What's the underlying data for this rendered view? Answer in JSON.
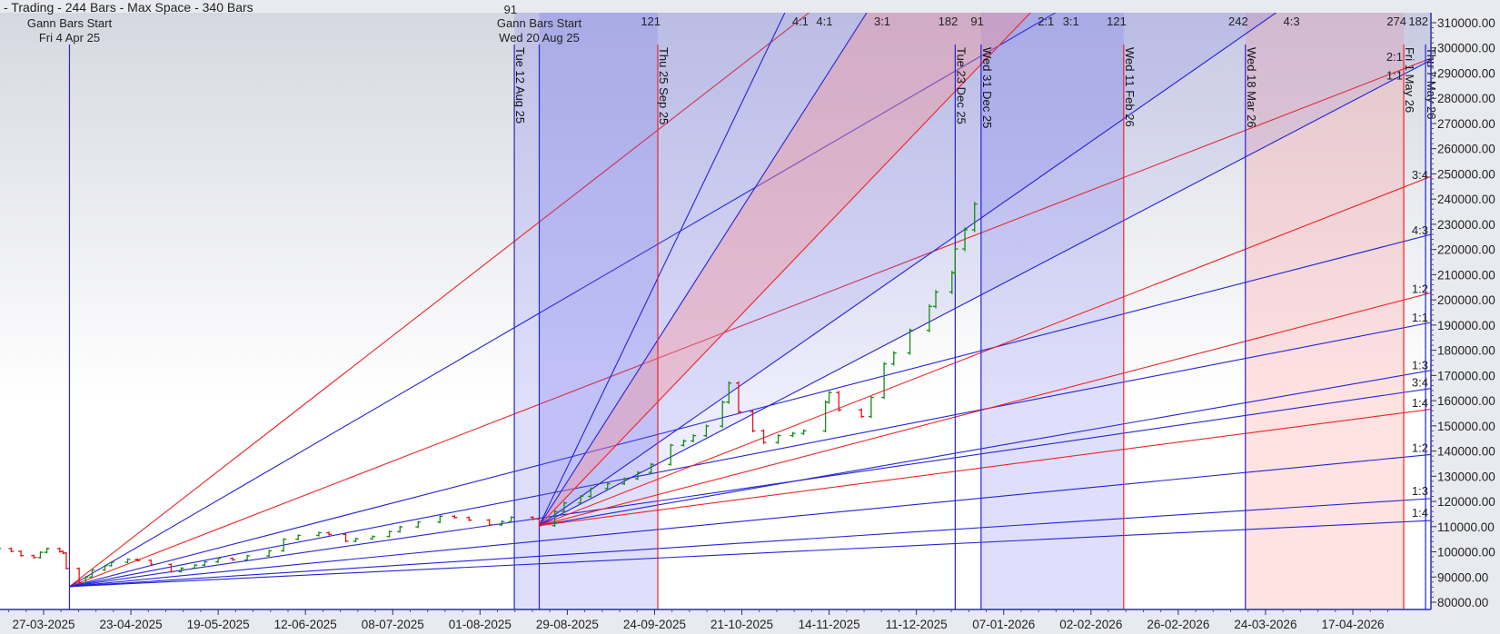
{
  "header": {
    "text": "- Trading - 244 Bars - Max Space - 340 Bars"
  },
  "colors": {
    "blue_line": "#2323d6",
    "red_line": "#ee2424",
    "up_bar": "#168a16",
    "down_bar": "#e01414",
    "axis": "#2a2ad0",
    "blue_zone": "#6c6cf0",
    "pink_zone": "#ff8c8c"
  },
  "chart_data": {
    "type": "ohlc",
    "y_axis": {
      "min": 80000,
      "max": 310000,
      "step": 10000,
      "decimals": 2,
      "position": "right"
    },
    "x_ticks": [
      "27-03-2025",
      "23-04-2025",
      "19-05-2025",
      "12-06-2025",
      "08-07-2025",
      "01-08-2025",
      "29-08-2025",
      "24-09-2025",
      "21-10-2025",
      "14-11-2025",
      "11-12-2025",
      "07-01-2026",
      "02-02-2026",
      "26-02-2026",
      "24-03-2026",
      "17-04-2026"
    ],
    "bars": [
      [
        "2025-03-13",
        101300
      ],
      [
        "2025-03-17",
        100200
      ],
      [
        "2025-03-20",
        98500
      ],
      [
        "2025-03-24",
        97700
      ],
      [
        "2025-03-26",
        99800
      ],
      [
        "2025-03-28",
        101300
      ],
      [
        "2025-04-01",
        100100
      ],
      [
        "2025-04-02",
        99500
      ],
      [
        "2025-04-03",
        93400
      ],
      [
        "2025-04-07",
        87600
      ],
      [
        "2025-04-09",
        90000
      ],
      [
        "2025-04-11",
        92800
      ],
      [
        "2025-04-15",
        94500
      ],
      [
        "2025-04-17",
        95900
      ],
      [
        "2025-04-22",
        97000
      ],
      [
        "2025-04-25",
        96600
      ],
      [
        "2025-04-29",
        95000
      ],
      [
        "2025-05-05",
        92100
      ],
      [
        "2025-05-08",
        93500
      ],
      [
        "2025-05-12",
        94700
      ],
      [
        "2025-05-15",
        96000
      ],
      [
        "2025-05-19",
        97400
      ],
      [
        "2025-05-23",
        96800
      ],
      [
        "2025-05-27",
        98400
      ],
      [
        "2025-06-02",
        100400
      ],
      [
        "2025-06-06",
        105000
      ],
      [
        "2025-06-10",
        106500
      ],
      [
        "2025-06-16",
        107600
      ],
      [
        "2025-06-19",
        106900
      ],
      [
        "2025-06-24",
        104200
      ],
      [
        "2025-06-27",
        105200
      ],
      [
        "2025-07-02",
        106100
      ],
      [
        "2025-07-07",
        108000
      ],
      [
        "2025-07-10",
        109900
      ],
      [
        "2025-07-15",
        111800
      ],
      [
        "2025-07-21",
        114100
      ],
      [
        "2025-07-25",
        113600
      ],
      [
        "2025-07-29",
        112600
      ],
      [
        "2025-08-04",
        110700
      ],
      [
        "2025-08-08",
        112000
      ],
      [
        "2025-08-11",
        113700
      ],
      [
        "2025-08-18",
        113000
      ],
      [
        "2025-08-20",
        110400
      ],
      [
        "2025-08-25",
        116000
      ],
      [
        "2025-08-28",
        119400
      ],
      [
        "2025-09-02",
        122000
      ],
      [
        "2025-09-05",
        125100
      ],
      [
        "2025-09-10",
        127000
      ],
      [
        "2025-09-15",
        129000
      ],
      [
        "2025-09-19",
        131500
      ],
      [
        "2025-09-23",
        134700
      ],
      [
        "2025-09-29",
        142300
      ],
      [
        "2025-10-03",
        144000
      ],
      [
        "2025-10-06",
        146100
      ],
      [
        "2025-10-10",
        149900
      ],
      [
        "2025-10-15",
        159400
      ],
      [
        "2025-10-17",
        167000
      ],
      [
        "2025-10-20",
        155600
      ],
      [
        "2025-10-24",
        148000
      ],
      [
        "2025-10-27",
        143400
      ],
      [
        "2025-10-31",
        146100
      ],
      [
        "2025-11-04",
        147000
      ],
      [
        "2025-11-07",
        148000
      ],
      [
        "2025-11-13",
        159400
      ],
      [
        "2025-11-14",
        163200
      ],
      [
        "2025-11-17",
        156300
      ],
      [
        "2025-11-24",
        153700
      ],
      [
        "2025-11-27",
        161300
      ],
      [
        "2025-12-01",
        174600
      ],
      [
        "2025-12-04",
        178900
      ],
      [
        "2025-12-09",
        187900
      ],
      [
        "2025-12-15",
        197400
      ],
      [
        "2025-12-17",
        203100
      ],
      [
        "2025-12-22",
        210700
      ],
      [
        "2025-12-23",
        220200
      ],
      [
        "2025-12-26",
        227800
      ],
      [
        "2025-12-29",
        238000
      ]
    ],
    "fans": [
      {
        "start_label": [
          "Gann Bars Start",
          "Fri 4 Apr 25"
        ],
        "origin_date": "2025-04-04",
        "origin_price": 86200,
        "one_to_one_through": {
          "date": "2026-05-08",
          "price": 190900
        },
        "lines": [
          {
            "ratio": "4:1",
            "color": "red"
          },
          {
            "ratio": "3:1",
            "color": "blue"
          },
          {
            "ratio": "2:1",
            "color": "red"
          },
          {
            "ratio": "4:3",
            "color": "blue"
          },
          {
            "ratio": "1:1",
            "color": "blue"
          },
          {
            "ratio": "3:4",
            "color": "blue"
          },
          {
            "ratio": "1:2",
            "color": "blue"
          },
          {
            "ratio": "1:3",
            "color": "blue"
          },
          {
            "ratio": "1:4",
            "color": "blue"
          }
        ]
      },
      {
        "start_label": [
          "Gann Bars Start",
          "Wed 20 Aug 25"
        ],
        "origin_date": "2025-08-20",
        "origin_price": 110400,
        "one_to_one_through": {
          "date": "2026-05-08",
          "price": 294800
        },
        "lines": [
          {
            "ratio": "4:1",
            "color": "blue"
          },
          {
            "ratio": "3:1",
            "color": "blue"
          },
          {
            "ratio": "2:1",
            "color": "red"
          },
          {
            "ratio": "4:3",
            "color": "blue"
          },
          {
            "ratio": "1:1",
            "color": "blue"
          },
          {
            "ratio": "3:4",
            "color": "red"
          },
          {
            "ratio": "1:2",
            "color": "red"
          },
          {
            "ratio": "1:3",
            "color": "blue"
          },
          {
            "ratio": "1:4",
            "color": "red"
          }
        ]
      }
    ],
    "vertical_lines": [
      {
        "date": "2025-04-04",
        "color": "blue",
        "label": ""
      },
      {
        "date": "2025-08-12",
        "color": "blue",
        "label": "Tue 12 Aug 25",
        "count": "91"
      },
      {
        "date": "2025-08-20",
        "color": "blue",
        "label": ""
      },
      {
        "date": "2025-09-25",
        "color": "red",
        "label": "Thu 25 Sep 25",
        "count": "121"
      },
      {
        "date": "2025-12-23",
        "color": "blue",
        "label": "Tue 23 Dec 25",
        "count": "182"
      },
      {
        "date": "2025-12-31",
        "color": "blue",
        "label": "Wed 31 Dec 25",
        "count": "91"
      },
      {
        "date": "2026-02-11",
        "color": "red",
        "label": "Wed 11 Feb 26",
        "count": "121"
      },
      {
        "date": "2026-03-18",
        "color": "blue",
        "label": "Wed 18 Mar 26",
        "count": "242"
      },
      {
        "date": "2026-05-01",
        "color": "red",
        "label": "Fri 1 May 26",
        "count": "274"
      },
      {
        "date": "2026-05-07",
        "color": "blue",
        "label": "Thu 7 May 26",
        "count": "182"
      }
    ],
    "time_zones": [
      {
        "from": "2025-08-12",
        "to": "2025-09-25",
        "color": "blue"
      },
      {
        "from": "2025-12-31",
        "to": "2026-02-11",
        "color": "blue"
      },
      {
        "from": "2026-03-18",
        "to": "2026-05-01",
        "color": "pink"
      }
    ],
    "grid": false,
    "legend": "none"
  }
}
